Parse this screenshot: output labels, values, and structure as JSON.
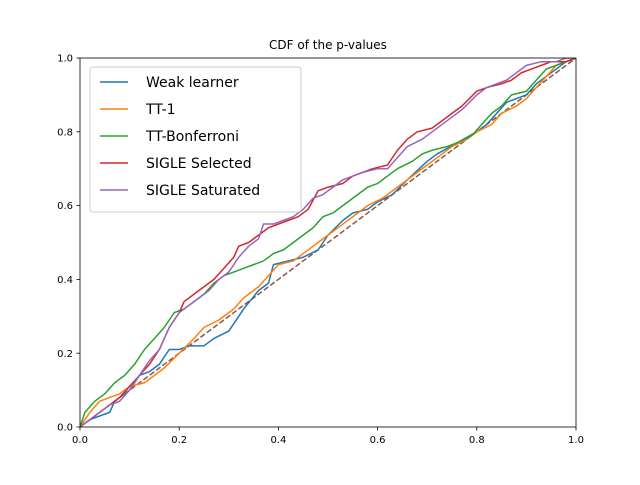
{
  "chart_data": {
    "type": "line",
    "title": "CDF of the p-values",
    "xlabel": "",
    "ylabel": "",
    "xlim": [
      0,
      1
    ],
    "ylim": [
      0,
      1
    ],
    "xticks": [
      "0.0",
      "0.2",
      "0.4",
      "0.6",
      "0.8",
      "1.0"
    ],
    "yticks": [
      "0.0",
      "0.2",
      "0.4",
      "0.6",
      "0.8",
      "1.0"
    ],
    "grid": false,
    "legend_position": "upper-left",
    "reference_line": {
      "x": [
        0,
        1
      ],
      "y": [
        0,
        1
      ],
      "color": "#8c564b",
      "style": "dashed"
    },
    "series": [
      {
        "name": "Weak learner",
        "color": "#1f77b4",
        "points": [
          [
            0,
            0
          ],
          [
            0.02,
            0.02
          ],
          [
            0.04,
            0.03
          ],
          [
            0.06,
            0.04
          ],
          [
            0.07,
            0.07
          ],
          [
            0.1,
            0.1
          ],
          [
            0.12,
            0.14
          ],
          [
            0.14,
            0.15
          ],
          [
            0.16,
            0.17
          ],
          [
            0.18,
            0.21
          ],
          [
            0.2,
            0.21
          ],
          [
            0.22,
            0.22
          ],
          [
            0.25,
            0.22
          ],
          [
            0.27,
            0.24
          ],
          [
            0.3,
            0.26
          ],
          [
            0.33,
            0.32
          ],
          [
            0.36,
            0.37
          ],
          [
            0.38,
            0.39
          ],
          [
            0.39,
            0.44
          ],
          [
            0.42,
            0.45
          ],
          [
            0.45,
            0.46
          ],
          [
            0.48,
            0.48
          ],
          [
            0.5,
            0.52
          ],
          [
            0.53,
            0.56
          ],
          [
            0.55,
            0.58
          ],
          [
            0.58,
            0.59
          ],
          [
            0.6,
            0.61
          ],
          [
            0.63,
            0.63
          ],
          [
            0.66,
            0.67
          ],
          [
            0.7,
            0.72
          ],
          [
            0.72,
            0.74
          ],
          [
            0.76,
            0.77
          ],
          [
            0.8,
            0.8
          ],
          [
            0.82,
            0.82
          ],
          [
            0.84,
            0.85
          ],
          [
            0.86,
            0.88
          ],
          [
            0.88,
            0.89
          ],
          [
            0.9,
            0.9
          ],
          [
            0.92,
            0.93
          ],
          [
            0.94,
            0.95
          ],
          [
            0.96,
            0.97
          ],
          [
            0.98,
            0.99
          ],
          [
            1,
            1
          ]
        ]
      },
      {
        "name": "TT-1",
        "color": "#ff7f0e",
        "points": [
          [
            0,
            0
          ],
          [
            0.02,
            0.04
          ],
          [
            0.04,
            0.07
          ],
          [
            0.06,
            0.08
          ],
          [
            0.08,
            0.09
          ],
          [
            0.1,
            0.11
          ],
          [
            0.13,
            0.12
          ],
          [
            0.15,
            0.14
          ],
          [
            0.17,
            0.16
          ],
          [
            0.2,
            0.2
          ],
          [
            0.23,
            0.24
          ],
          [
            0.25,
            0.27
          ],
          [
            0.28,
            0.29
          ],
          [
            0.31,
            0.32
          ],
          [
            0.33,
            0.35
          ],
          [
            0.36,
            0.38
          ],
          [
            0.38,
            0.41
          ],
          [
            0.4,
            0.44
          ],
          [
            0.43,
            0.45
          ],
          [
            0.45,
            0.47
          ],
          [
            0.48,
            0.5
          ],
          [
            0.5,
            0.52
          ],
          [
            0.53,
            0.55
          ],
          [
            0.56,
            0.58
          ],
          [
            0.58,
            0.6
          ],
          [
            0.61,
            0.62
          ],
          [
            0.63,
            0.64
          ],
          [
            0.66,
            0.67
          ],
          [
            0.68,
            0.69
          ],
          [
            0.7,
            0.71
          ],
          [
            0.73,
            0.74
          ],
          [
            0.75,
            0.76
          ],
          [
            0.78,
            0.78
          ],
          [
            0.8,
            0.8
          ],
          [
            0.83,
            0.82
          ],
          [
            0.85,
            0.85
          ],
          [
            0.88,
            0.87
          ],
          [
            0.9,
            0.89
          ],
          [
            0.92,
            0.92
          ],
          [
            0.94,
            0.95
          ],
          [
            0.96,
            0.98
          ],
          [
            0.98,
            0.99
          ],
          [
            1,
            1
          ]
        ]
      },
      {
        "name": "TT-Bonferroni",
        "color": "#2ca02c",
        "points": [
          [
            0,
            0
          ],
          [
            0.01,
            0.04
          ],
          [
            0.03,
            0.07
          ],
          [
            0.05,
            0.09
          ],
          [
            0.07,
            0.12
          ],
          [
            0.09,
            0.14
          ],
          [
            0.11,
            0.17
          ],
          [
            0.13,
            0.21
          ],
          [
            0.15,
            0.24
          ],
          [
            0.17,
            0.27
          ],
          [
            0.19,
            0.31
          ],
          [
            0.21,
            0.32
          ],
          [
            0.23,
            0.34
          ],
          [
            0.25,
            0.36
          ],
          [
            0.27,
            0.39
          ],
          [
            0.29,
            0.41
          ],
          [
            0.31,
            0.42
          ],
          [
            0.33,
            0.43
          ],
          [
            0.35,
            0.44
          ],
          [
            0.37,
            0.45
          ],
          [
            0.39,
            0.47
          ],
          [
            0.41,
            0.48
          ],
          [
            0.43,
            0.5
          ],
          [
            0.45,
            0.52
          ],
          [
            0.47,
            0.54
          ],
          [
            0.49,
            0.57
          ],
          [
            0.51,
            0.58
          ],
          [
            0.53,
            0.6
          ],
          [
            0.55,
            0.62
          ],
          [
            0.58,
            0.65
          ],
          [
            0.6,
            0.66
          ],
          [
            0.62,
            0.68
          ],
          [
            0.64,
            0.7
          ],
          [
            0.67,
            0.72
          ],
          [
            0.69,
            0.74
          ],
          [
            0.71,
            0.75
          ],
          [
            0.74,
            0.76
          ],
          [
            0.76,
            0.77
          ],
          [
            0.79,
            0.79
          ],
          [
            0.81,
            0.82
          ],
          [
            0.83,
            0.85
          ],
          [
            0.85,
            0.87
          ],
          [
            0.87,
            0.9
          ],
          [
            0.9,
            0.91
          ],
          [
            0.92,
            0.94
          ],
          [
            0.94,
            0.97
          ],
          [
            0.96,
            0.98
          ],
          [
            0.98,
            0.99
          ],
          [
            1,
            1
          ]
        ]
      },
      {
        "name": "SIGLE Selected",
        "color": "#d62728",
        "points": [
          [
            0,
            0
          ],
          [
            0.02,
            0.02
          ],
          [
            0.04,
            0.04
          ],
          [
            0.06,
            0.06
          ],
          [
            0.08,
            0.08
          ],
          [
            0.1,
            0.11
          ],
          [
            0.12,
            0.14
          ],
          [
            0.14,
            0.17
          ],
          [
            0.16,
            0.21
          ],
          [
            0.18,
            0.27
          ],
          [
            0.2,
            0.31
          ],
          [
            0.21,
            0.34
          ],
          [
            0.23,
            0.36
          ],
          [
            0.25,
            0.38
          ],
          [
            0.27,
            0.4
          ],
          [
            0.29,
            0.43
          ],
          [
            0.31,
            0.46
          ],
          [
            0.32,
            0.49
          ],
          [
            0.34,
            0.5
          ],
          [
            0.36,
            0.52
          ],
          [
            0.38,
            0.54
          ],
          [
            0.4,
            0.55
          ],
          [
            0.42,
            0.56
          ],
          [
            0.44,
            0.57
          ],
          [
            0.46,
            0.59
          ],
          [
            0.48,
            0.64
          ],
          [
            0.5,
            0.65
          ],
          [
            0.53,
            0.66
          ],
          [
            0.55,
            0.68
          ],
          [
            0.57,
            0.69
          ],
          [
            0.59,
            0.7
          ],
          [
            0.62,
            0.71
          ],
          [
            0.64,
            0.75
          ],
          [
            0.66,
            0.78
          ],
          [
            0.68,
            0.8
          ],
          [
            0.71,
            0.81
          ],
          [
            0.73,
            0.83
          ],
          [
            0.75,
            0.85
          ],
          [
            0.77,
            0.87
          ],
          [
            0.8,
            0.91
          ],
          [
            0.82,
            0.92
          ],
          [
            0.85,
            0.93
          ],
          [
            0.87,
            0.94
          ],
          [
            0.89,
            0.96
          ],
          [
            0.91,
            0.97
          ],
          [
            0.93,
            0.98
          ],
          [
            0.95,
            0.99
          ],
          [
            0.98,
            0.99
          ],
          [
            1,
            1
          ]
        ]
      },
      {
        "name": "SIGLE Saturated",
        "color": "#9467bd",
        "points": [
          [
            0,
            0
          ],
          [
            0.02,
            0.02
          ],
          [
            0.04,
            0.04
          ],
          [
            0.06,
            0.06
          ],
          [
            0.08,
            0.07
          ],
          [
            0.1,
            0.1
          ],
          [
            0.12,
            0.14
          ],
          [
            0.14,
            0.18
          ],
          [
            0.16,
            0.21
          ],
          [
            0.18,
            0.27
          ],
          [
            0.2,
            0.31
          ],
          [
            0.22,
            0.33
          ],
          [
            0.24,
            0.35
          ],
          [
            0.26,
            0.37
          ],
          [
            0.28,
            0.4
          ],
          [
            0.3,
            0.42
          ],
          [
            0.32,
            0.46
          ],
          [
            0.34,
            0.49
          ],
          [
            0.36,
            0.51
          ],
          [
            0.37,
            0.55
          ],
          [
            0.39,
            0.55
          ],
          [
            0.41,
            0.56
          ],
          [
            0.43,
            0.57
          ],
          [
            0.45,
            0.59
          ],
          [
            0.47,
            0.62
          ],
          [
            0.49,
            0.63
          ],
          [
            0.51,
            0.65
          ],
          [
            0.53,
            0.67
          ],
          [
            0.55,
            0.68
          ],
          [
            0.57,
            0.69
          ],
          [
            0.6,
            0.7
          ],
          [
            0.62,
            0.7
          ],
          [
            0.64,
            0.73
          ],
          [
            0.66,
            0.76
          ],
          [
            0.69,
            0.78
          ],
          [
            0.71,
            0.8
          ],
          [
            0.73,
            0.82
          ],
          [
            0.75,
            0.84
          ],
          [
            0.77,
            0.86
          ],
          [
            0.8,
            0.9
          ],
          [
            0.82,
            0.92
          ],
          [
            0.84,
            0.93
          ],
          [
            0.86,
            0.94
          ],
          [
            0.88,
            0.96
          ],
          [
            0.9,
            0.98
          ],
          [
            0.93,
            0.99
          ],
          [
            0.96,
            0.99
          ],
          [
            0.98,
            1
          ],
          [
            1,
            1
          ]
        ]
      }
    ]
  }
}
